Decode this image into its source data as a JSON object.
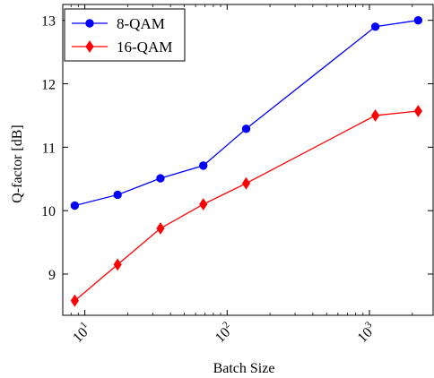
{
  "chart_data": {
    "type": "line",
    "xlabel": "Batch Size",
    "ylabel": "Q-factor [dB]",
    "xscale": "log",
    "xlim": [
      7,
      2800
    ],
    "ylim": [
      8.35,
      13.25
    ],
    "grid": false,
    "legend_position": "top-left",
    "x_ticks": [
      {
        "value": 10,
        "base": "10",
        "exp": "1"
      },
      {
        "value": 100,
        "base": "10",
        "exp": "2"
      },
      {
        "value": 1000,
        "base": "10",
        "exp": "3"
      }
    ],
    "y_ticks": [
      9,
      10,
      11,
      12,
      13
    ],
    "series": [
      {
        "name": "8-QAM",
        "color": "#0000ff",
        "marker": "circle",
        "x": [
          8.5,
          17,
          34,
          68,
          136,
          1100,
          2200
        ],
        "y": [
          10.08,
          10.25,
          10.51,
          10.71,
          11.29,
          12.9,
          13.0
        ]
      },
      {
        "name": "16-QAM",
        "color": "#ff0000",
        "marker": "diamond",
        "x": [
          8.5,
          17,
          34,
          68,
          136,
          1100,
          2200
        ],
        "y": [
          8.58,
          9.15,
          9.72,
          10.1,
          10.43,
          11.5,
          11.57
        ]
      }
    ]
  }
}
